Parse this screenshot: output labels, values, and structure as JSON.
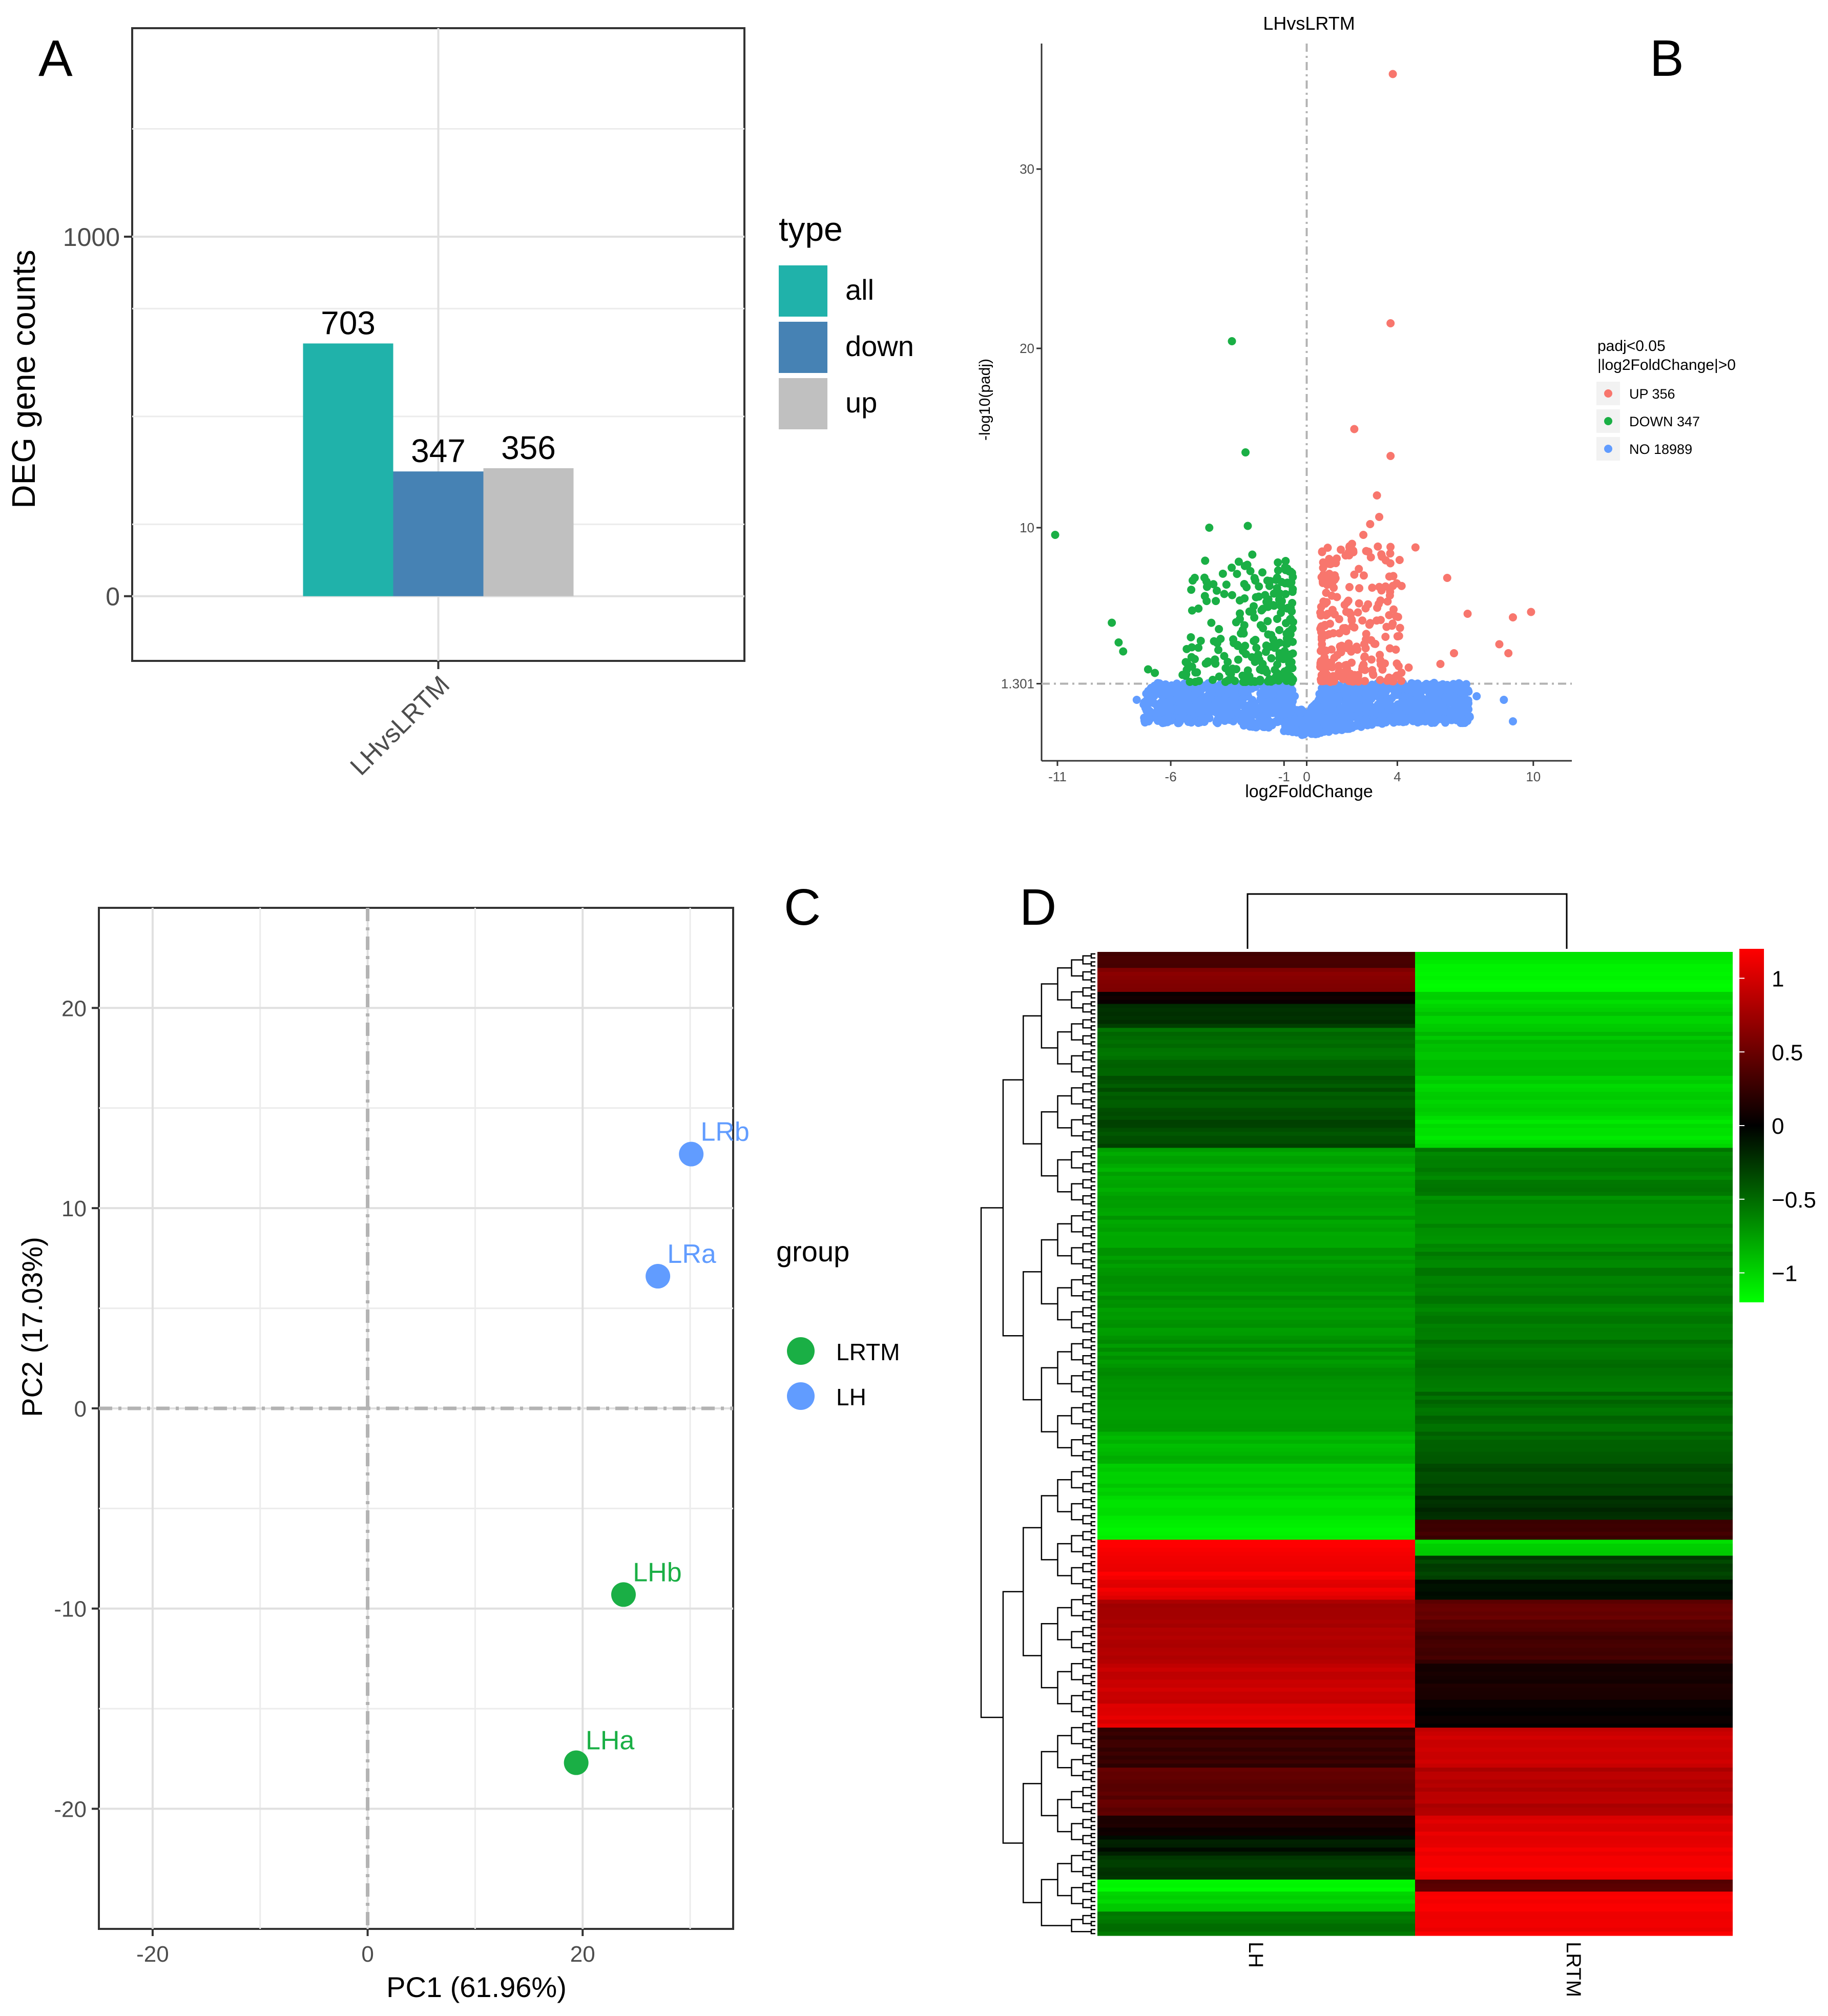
{
  "panels": {
    "a": "A",
    "b": "B",
    "c": "C",
    "d": "D"
  },
  "chart_data": [
    {
      "panel": "A",
      "type": "bar",
      "categories": [
        "LHvsLRTM"
      ],
      "series": [
        {
          "name": "all",
          "values": [
            703
          ],
          "color": "#20b2aa"
        },
        {
          "name": "down",
          "values": [
            347
          ],
          "color": "#4682b4"
        },
        {
          "name": "up",
          "values": [
            356
          ],
          "color": "#c0c0c0"
        }
      ],
      "data_labels": [
        "703",
        "347",
        "356"
      ],
      "title": "",
      "xlabel": "",
      "ylabel": "DEG gene counts",
      "ylim": [
        -180,
        1580
      ],
      "yticks": [
        0,
        1000
      ],
      "ytick_labels": [
        "0",
        "1000"
      ],
      "legend_title": "type",
      "legend_labels": [
        "all",
        "down",
        "up"
      ],
      "legend_position": "right",
      "grid": true
    },
    {
      "panel": "B",
      "type": "scatter",
      "title": "LHvsLRTM",
      "xlabel": "log2FoldChange",
      "ylabel": "-log10(padj)",
      "xlim": [
        -11.7,
        11.7
      ],
      "ylim": [
        -3,
        37
      ],
      "xticks": [
        -11,
        -6,
        -1,
        0,
        4,
        10
      ],
      "xtick_labels": [
        "-11",
        "-6",
        "-1",
        "0",
        "4",
        "10"
      ],
      "yticks": [
        1.301,
        10,
        20,
        30
      ],
      "ytick_labels": [
        "1.301",
        "10",
        "20",
        "30"
      ],
      "thresholds": {
        "padj_line": 1.301,
        "fc_line": 0
      },
      "legend_title": "padj<0.05\n|log2FoldChange|>0",
      "legend_title_lines": [
        "padj<0.05",
        "|log2FoldChange|>0"
      ],
      "legend_position": "right",
      "series": [
        {
          "name": "UP 356",
          "color": "#f8766d",
          "count": 356,
          "points": [
            [
              3.8,
              35.3
            ],
            [
              3.7,
              21.4
            ],
            [
              2.1,
              15.5
            ],
            [
              3.7,
              14
            ],
            [
              3.1,
              11.8
            ],
            [
              3.2,
              10.6
            ],
            [
              2.8,
              10.2
            ],
            [
              2.5,
              9.6
            ],
            [
              2.0,
              9.1
            ],
            [
              4.8,
              8.9
            ],
            [
              4.1,
              8.2
            ],
            [
              6.2,
              7.2
            ],
            [
              7.1,
              5.2
            ],
            [
              9.1,
              5.0
            ],
            [
              9.9,
              5.3
            ],
            [
              8.5,
              3.5
            ],
            [
              8.9,
              3.0
            ],
            [
              6.5,
              3.0
            ],
            [
              5.9,
              2.4
            ],
            [
              4.5,
              2.2
            ],
            [
              3.3,
              6.5
            ],
            [
              2.6,
              5.5
            ],
            [
              1.7,
              4.4
            ],
            [
              2.3,
              7.7
            ],
            [
              1.5,
              3.2
            ]
          ],
          "cluster": {
            "x": [
              0.6,
              4.2
            ],
            "y": [
              1.4,
              9.0
            ],
            "n": 230
          }
        },
        {
          "name": "DOWN 347",
          "color": "#1aaf45",
          "count": 347,
          "points": [
            [
              -11.1,
              9.6
            ],
            [
              -3.3,
              20.4
            ],
            [
              -2.7,
              14.2
            ],
            [
              -2.6,
              10.1
            ],
            [
              -4.3,
              10.0
            ],
            [
              -2.4,
              8.5
            ],
            [
              -4.4,
              6.7
            ],
            [
              -8.6,
              4.7
            ],
            [
              -8.3,
              3.6
            ],
            [
              -8.1,
              3.1
            ],
            [
              -7.0,
              2.1
            ],
            [
              -6.7,
              1.9
            ],
            [
              -3.8,
              3.8
            ],
            [
              -1.2,
              3.0
            ]
          ],
          "cluster": {
            "x": [
              -5.5,
              -0.7
            ],
            "y": [
              1.4,
              8.2
            ],
            "n": 240
          }
        },
        {
          "name": "NO 18989",
          "color": "#619cff",
          "count": 18989,
          "points": [
            [
              9.1,
              -0.8
            ],
            [
              8.7,
              0.4
            ],
            [
              7.5,
              0.6
            ],
            [
              -7.5,
              0.4
            ],
            [
              6.0,
              0.2
            ]
          ],
          "cluster": {
            "x": [
              -7.2,
              7.2
            ],
            "y": [
              -1.5,
              1.35
            ],
            "n": 1400
          }
        }
      ]
    },
    {
      "panel": "C",
      "type": "scatter",
      "title": "",
      "xlabel": "PC1 (61.96%)",
      "ylabel": "PC2 (17.03%)",
      "xlim": [
        -25,
        34
      ],
      "ylim": [
        -26,
        25
      ],
      "xticks": [
        -20,
        0,
        20
      ],
      "xtick_labels": [
        "-20",
        "0",
        "20"
      ],
      "yticks": [
        -20,
        -10,
        0,
        10,
        20
      ],
      "ytick_labels": [
        "-20",
        "-10",
        "0",
        "10",
        "20"
      ],
      "legend_title": "group",
      "legend_position": "right",
      "series": [
        {
          "name": "LRTM",
          "color": "#1aaf45",
          "points": [
            {
              "label": "LHb",
              "x": 23.8,
              "y": -9.3
            },
            {
              "label": "LHa",
              "x": 19.4,
              "y": -17.7
            }
          ]
        },
        {
          "name": "LH",
          "color": "#619cff",
          "points": [
            {
              "label": "LRb",
              "x": 30.1,
              "y": 12.7
            },
            {
              "label": "LRa",
              "x": 27.0,
              "y": 6.6
            }
          ]
        }
      ]
    },
    {
      "panel": "D",
      "type": "heatmap",
      "columns": [
        "LH",
        "LRTM"
      ],
      "color_scale": {
        "min": -1.2,
        "max": 1.2,
        "low": "#00ff00",
        "mid": "#000000",
        "high": "#ff0000"
      },
      "colorbar_ticks": [
        1,
        0.5,
        0,
        -0.5,
        -1
      ],
      "colorbar_labels": [
        "1",
        "0.5",
        "0",
        "−0.5",
        "−1"
      ],
      "row_blocks": [
        {
          "n": 4,
          "lh": 0.3,
          "lrtm": -1.1
        },
        {
          "n": 6,
          "lh": 0.6,
          "lrtm": -1.15
        },
        {
          "n": 3,
          "lh": 0.05,
          "lrtm": -1.0
        },
        {
          "n": 6,
          "lh": -0.25,
          "lrtm": -0.95
        },
        {
          "n": 12,
          "lh": -0.5,
          "lrtm": -0.9
        },
        {
          "n": 10,
          "lh": -0.4,
          "lrtm": -1.0
        },
        {
          "n": 8,
          "lh": -0.35,
          "lrtm": -1.05
        },
        {
          "n": 12,
          "lh": -0.8,
          "lrtm": -0.6
        },
        {
          "n": 14,
          "lh": -0.75,
          "lrtm": -0.65
        },
        {
          "n": 15,
          "lh": -0.7,
          "lrtm": -0.6
        },
        {
          "n": 20,
          "lh": -0.7,
          "lrtm": -0.55
        },
        {
          "n": 10,
          "lh": -0.75,
          "lrtm": -0.5
        },
        {
          "n": 8,
          "lh": -0.85,
          "lrtm": -0.45
        },
        {
          "n": 8,
          "lh": -0.95,
          "lrtm": -0.35
        },
        {
          "n": 6,
          "lh": -1.05,
          "lrtm": -0.2
        },
        {
          "n": 5,
          "lh": -1.15,
          "lrtm": 0.3
        },
        {
          "n": 4,
          "lh": 1.2,
          "lrtm": -1.0
        },
        {
          "n": 6,
          "lh": 1.15,
          "lrtm": -0.3
        },
        {
          "n": 5,
          "lh": 1.1,
          "lrtm": -0.1
        },
        {
          "n": 8,
          "lh": 0.8,
          "lrtm": 0.45
        },
        {
          "n": 8,
          "lh": 0.85,
          "lrtm": 0.3
        },
        {
          "n": 10,
          "lh": 0.95,
          "lrtm": 0.1
        },
        {
          "n": 6,
          "lh": 1.05,
          "lrtm": 0.02
        },
        {
          "n": 10,
          "lh": 0.25,
          "lrtm": 0.95
        },
        {
          "n": 12,
          "lh": 0.45,
          "lrtm": 0.85
        },
        {
          "n": 5,
          "lh": 0.1,
          "lrtm": 1.05
        },
        {
          "n": 5,
          "lh": -0.1,
          "lrtm": 1.1
        },
        {
          "n": 6,
          "lh": -0.25,
          "lrtm": 1.15
        },
        {
          "n": 3,
          "lh": -1.2,
          "lrtm": 0.4
        },
        {
          "n": 5,
          "lh": -1.0,
          "lrtm": 1.2
        },
        {
          "n": 6,
          "lh": -0.55,
          "lrtm": 1.15
        }
      ]
    }
  ]
}
